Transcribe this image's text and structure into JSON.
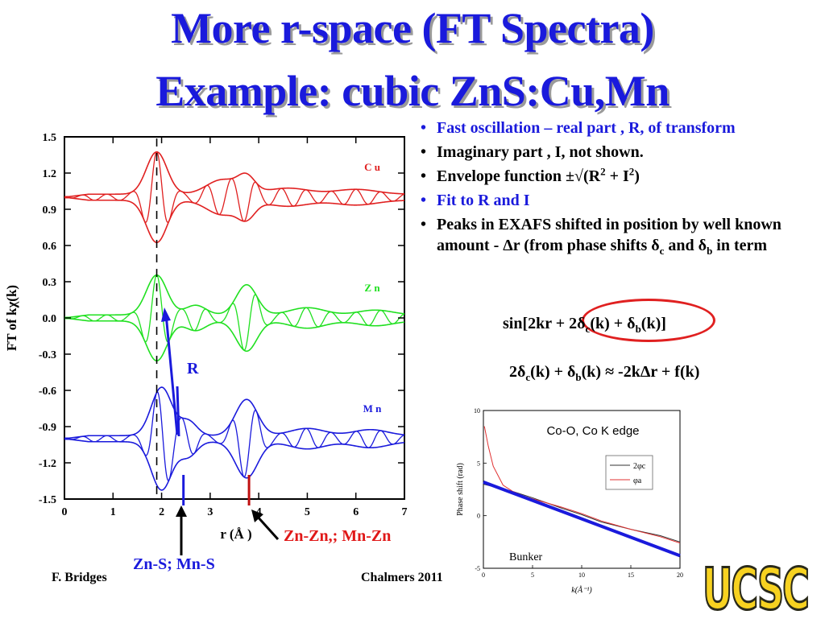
{
  "slide": {
    "title_line1": "More r-space  (FT Spectra)",
    "title_line2": "Example: cubic ZnS:Cu,Mn",
    "footer_author": "F. Bridges",
    "footer_venue": "Chalmers 2011",
    "logo_text": "UCSC"
  },
  "bullets": {
    "b1": "Fast oscillation – real part , R, of transform",
    "b2": "Imaginary part , I, not shown.",
    "b3_pre": "Envelope function  ±√(R",
    "b3_sup1": "2",
    "b3_mid": " + I",
    "b3_sup2": "2",
    "b3_post": ")",
    "b4": "Fit to R and I",
    "b5_pre": "Peaks in EXAFS shifted in position by well known amount  - Δr (from phase shifts δ",
    "b5_sub1": "c",
    "b5_mid": "  and  δ",
    "b5_sub2": "b",
    "b5_post": " in term"
  },
  "equations": {
    "eq1_a": "sin[2kr + 2δ",
    "eq1_sub1": "c",
    "eq1_b": "(k) + δ",
    "eq1_sub2": "b",
    "eq1_c": "(k)]",
    "eq2_a": "2δ",
    "eq2_sub1": "c",
    "eq2_b": "(k) + δ",
    "eq2_sub2": "b",
    "eq2_c": "(k) ≈ -2kΔr + f(k)"
  },
  "annotations": {
    "r_label": "R",
    "znzn_label": "Zn-Zn,; Mn-Zn",
    "zns_label": "Zn-S; Mn-S"
  },
  "colors": {
    "title": "#1a1adc",
    "cu": "#e02020",
    "zn": "#20e020",
    "mn": "#1a1adc",
    "logo": "#f7d220"
  },
  "chart_data": [
    {
      "type": "line",
      "title": "",
      "xlabel": "r  (Å )",
      "ylabel": "FT of kχ(k)",
      "xlim": [
        0,
        7
      ],
      "ylim": [
        -1.5,
        1.5
      ],
      "xticks": [
        "0",
        "1",
        "2",
        "3",
        "4",
        "5",
        "6",
        "7"
      ],
      "yticks": [
        "1.5",
        "1.2",
        "0.9",
        "0.6",
        "0.3",
        "0.0",
        "-0.3",
        "-0.6",
        "-0.9",
        "-1.2",
        "-1.5"
      ],
      "vertical_dashed_line_x": 1.9,
      "peak_markers": [
        {
          "x": 2.45,
          "color": "#1a1adc"
        },
        {
          "x": 3.8,
          "color": "#c01010"
        }
      ],
      "series": [
        {
          "name": "C u",
          "color": "#e02020",
          "baseline": 1.0,
          "envelope_peaks": [
            {
              "x": 1.9,
              "amp": 0.35,
              "width": 0.3
            },
            {
              "x": 3.25,
              "amp": 0.12,
              "width": 0.45
            },
            {
              "x": 3.75,
              "amp": 0.13,
              "width": 0.25
            },
            {
              "x": 4.6,
              "amp": 0.05,
              "width": 0.6
            },
            {
              "x": 6.0,
              "amp": 0.04,
              "width": 0.6
            }
          ]
        },
        {
          "name": "Z n",
          "color": "#20e020",
          "baseline": 0.0,
          "envelope_peaks": [
            {
              "x": 1.9,
              "amp": 0.33,
              "width": 0.3
            },
            {
              "x": 2.7,
              "amp": 0.08,
              "width": 0.3
            },
            {
              "x": 3.75,
              "amp": 0.25,
              "width": 0.3
            },
            {
              "x": 5.0,
              "amp": 0.06,
              "width": 0.5
            },
            {
              "x": 6.4,
              "amp": 0.04,
              "width": 0.5
            }
          ]
        },
        {
          "name": "M n",
          "color": "#1a1adc",
          "baseline": -1.0,
          "envelope_peaks": [
            {
              "x": 2.0,
              "amp": 0.4,
              "width": 0.3
            },
            {
              "x": 2.55,
              "amp": 0.12,
              "width": 0.25
            },
            {
              "x": 3.75,
              "amp": 0.3,
              "width": 0.32
            },
            {
              "x": 5.0,
              "amp": 0.06,
              "width": 0.5
            },
            {
              "x": 6.3,
              "amp": 0.05,
              "width": 0.5
            }
          ]
        }
      ]
    },
    {
      "type": "line",
      "title": "Co-O, Co K edge",
      "xlabel": "k(Å⁻¹)",
      "ylabel": "Phase shift (rad)",
      "xlim": [
        0,
        20
      ],
      "ylim": [
        -5,
        10
      ],
      "xticks": [
        "0",
        "5",
        "10",
        "15",
        "20"
      ],
      "yticks": [
        "10",
        "5",
        "0",
        "-5"
      ],
      "annotation": "Bunker",
      "series": [
        {
          "name": "2φc",
          "color": "#333333",
          "x": [
            0,
            3,
            5,
            8,
            10,
            12,
            15,
            18,
            20
          ],
          "y": [
            3,
            2.3,
            1.7,
            0.7,
            0.1,
            -0.6,
            -1.3,
            -1.9,
            -2.5
          ]
        },
        {
          "name": "φa",
          "color": "#e03030",
          "x": [
            0.1,
            0.5,
            1,
            2,
            3,
            4,
            5,
            8,
            10,
            12,
            15,
            18,
            20
          ],
          "y": [
            8.5,
            6.6,
            4.7,
            2.9,
            2.3,
            1.9,
            1.6,
            0.8,
            0.2,
            -0.5,
            -1.3,
            -2.0,
            -2.6
          ]
        },
        {
          "name": "",
          "color": "#1a1adc",
          "x": [
            0,
            20
          ],
          "y": [
            3.2,
            -3.8
          ]
        }
      ]
    }
  ]
}
